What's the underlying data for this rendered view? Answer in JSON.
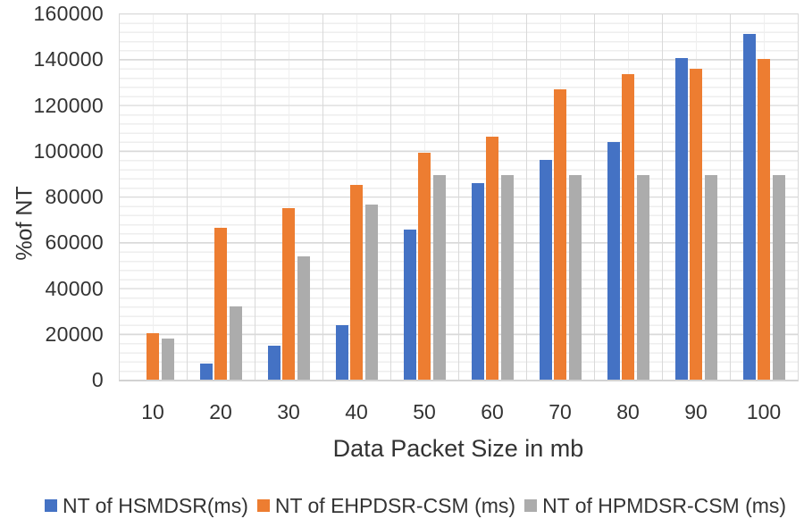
{
  "chart_data": {
    "type": "bar",
    "title": "",
    "xlabel": "Data Packet Size in mb",
    "ylabel": "%of NT",
    "ylim": [
      0,
      160000
    ],
    "ytick_step": 20000,
    "ytick_labels": [
      "0",
      "20000",
      "40000",
      "60000",
      "80000",
      "100000",
      "120000",
      "140000",
      "160000"
    ],
    "categories": [
      "10",
      "20",
      "30",
      "40",
      "50",
      "60",
      "70",
      "80",
      "90",
      "100"
    ],
    "series": [
      {
        "name": "NT of HSMDSR(ms)",
        "color": "#4472C4",
        "values": [
          0,
          7000,
          15000,
          24000,
          65500,
          86000,
          96000,
          104000,
          140500,
          151000
        ]
      },
      {
        "name": "NT of EHPDSR-CSM (ms)",
        "color": "#ED7D31",
        "values": [
          20500,
          66500,
          75000,
          85000,
          99000,
          106000,
          127000,
          133500,
          136000,
          140000
        ]
      },
      {
        "name": "NT of HPMDSR-CSM (ms)",
        "color": "#ACACAC",
        "values": [
          18000,
          32000,
          54000,
          76500,
          89500,
          89500,
          89500,
          89500,
          89500,
          89500
        ]
      }
    ],
    "legend_position": "bottom",
    "grid": {
      "major_color": "#d9d9d9",
      "minor_color": "#eeeeee",
      "minor_y_unit": 4000
    }
  }
}
